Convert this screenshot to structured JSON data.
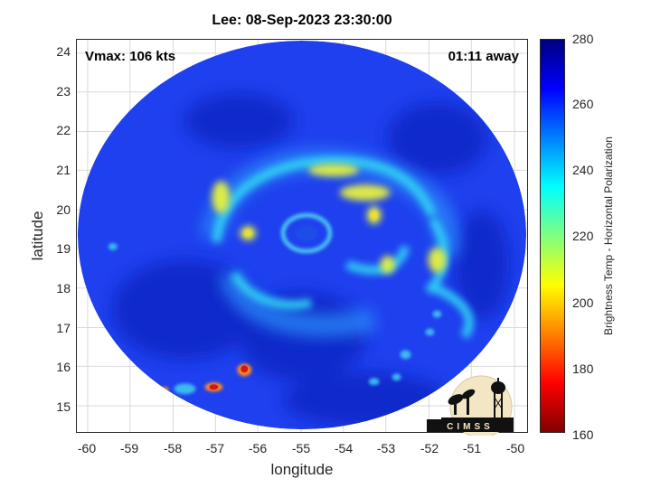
{
  "title": "Lee: 08-Sep-2023 23:30:00",
  "vmax_label": "Vmax: 106 kts",
  "away_label": "01:11 away",
  "xlabel": "longitude",
  "ylabel": "latitude",
  "colorbar_label": "Brightness Temp - Horizontal Polarization",
  "logo_text": "CIMSS",
  "x_ticks": [
    "-60",
    "-59",
    "-58",
    "-57",
    "-56",
    "-55",
    "-54",
    "-53",
    "-52",
    "-51",
    "-50"
  ],
  "y_ticks": [
    "15",
    "16",
    "17",
    "18",
    "19",
    "20",
    "21",
    "22",
    "23",
    "24"
  ],
  "colorbar_ticks": [
    "160",
    "180",
    "200",
    "220",
    "240",
    "260",
    "280"
  ],
  "map_extent": {
    "lon_min": -60.3,
    "lon_max": -49.7,
    "lat_min": 14.4,
    "lat_max": 24.4
  },
  "swath": {
    "center_lon": -55.0,
    "center_lat": 19.4,
    "radius_lon_deg": 5.1,
    "radius_lat_deg": 5.0
  },
  "storm_center": {
    "lon": -55.0,
    "lat": 19.4
  },
  "colorbar_range": [
    160,
    280
  ],
  "colors": {
    "background_field": "#1f3ff0",
    "warm_field": "#0a22c8",
    "rainband": "#2fd7f2",
    "strong_rainband": "#f1f23a",
    "hot_cells": "#e01818"
  }
}
